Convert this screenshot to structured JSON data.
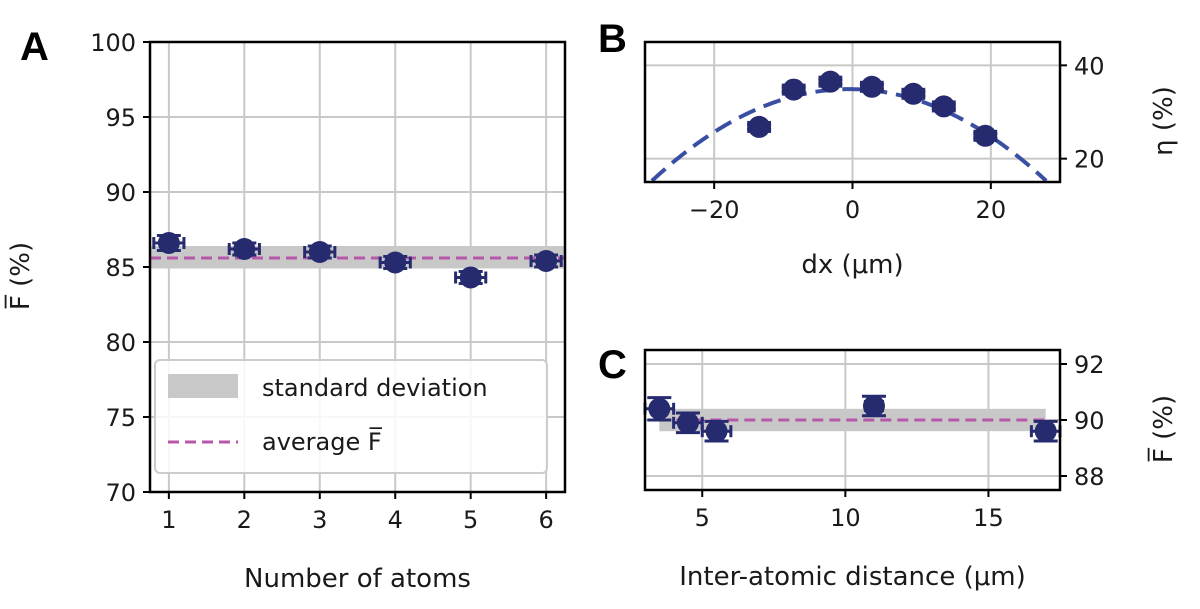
{
  "colors": {
    "points": "#262a6e",
    "fit": "#3a4fa3",
    "average": "#b657a9",
    "band": "#c8c8c8"
  },
  "chart_data": [
    {
      "panel": "A",
      "type": "scatter",
      "xlabel": "Number of atoms",
      "ylabel": "F̅ (%)",
      "xlim": [
        0.75,
        6.25
      ],
      "ylim": [
        70,
        100
      ],
      "xticks": [
        1,
        2,
        3,
        4,
        5,
        6
      ],
      "yticks": [
        70,
        75,
        80,
        85,
        90,
        95,
        100
      ],
      "grid": true,
      "x": [
        1,
        2,
        3,
        4,
        5,
        6
      ],
      "y": [
        86.6,
        86.2,
        86.0,
        85.3,
        84.3,
        85.4
      ],
      "xerr": [
        0.2,
        0.2,
        0.2,
        0.2,
        0.2,
        0.2
      ],
      "yerr": [
        0.5,
        0.4,
        0.4,
        0.4,
        0.4,
        0.4
      ],
      "average": 85.6,
      "std_band": [
        84.9,
        86.4
      ],
      "legend": {
        "position": "lower-left",
        "entries": [
          "standard deviation",
          "average F̅"
        ]
      }
    },
    {
      "panel": "B",
      "type": "scatter",
      "xlabel": "dx (μm)",
      "ylabel": "η (%)",
      "xlim": [
        -30,
        30
      ],
      "ylim": [
        15,
        45
      ],
      "xticks": [
        -20,
        0,
        20
      ],
      "xtick_labels": [
        "−20",
        "0",
        "20"
      ],
      "yticks": [
        20,
        40
      ],
      "grid": true,
      "x": [
        -13.5,
        -8.5,
        -3.2,
        2.8,
        8.8,
        13.2,
        19.2
      ],
      "y": [
        26.8,
        34.8,
        36.5,
        35.4,
        33.9,
        31.2,
        24.9
      ],
      "xerr": [
        1.5,
        1.5,
        1.5,
        1.5,
        1.5,
        1.5,
        1.5
      ],
      "yerr": [
        0.5,
        0.5,
        0.5,
        0.5,
        0.5,
        0.5,
        0.5
      ],
      "fit": {
        "kind": "parabola",
        "peak": 34.9,
        "center": -0.5,
        "curvature": -0.0242
      }
    },
    {
      "panel": "C",
      "type": "scatter",
      "xlabel": "Inter-atomic distance (μm)",
      "ylabel": "F̅ (%)",
      "xlim": [
        3,
        17.5
      ],
      "ylim": [
        87.5,
        92.5
      ],
      "xticks": [
        5,
        10,
        15
      ],
      "yticks": [
        88,
        90,
        92
      ],
      "grid": true,
      "x": [
        3.5,
        4.5,
        5.5,
        11.0,
        17.0
      ],
      "y": [
        90.4,
        89.9,
        89.6,
        90.5,
        89.6
      ],
      "xerr": [
        0.5,
        0.5,
        0.5,
        0.3,
        0.5
      ],
      "yerr": [
        0.4,
        0.35,
        0.35,
        0.35,
        0.35
      ],
      "average": 90.0,
      "std_band": [
        89.6,
        90.4
      ]
    }
  ]
}
